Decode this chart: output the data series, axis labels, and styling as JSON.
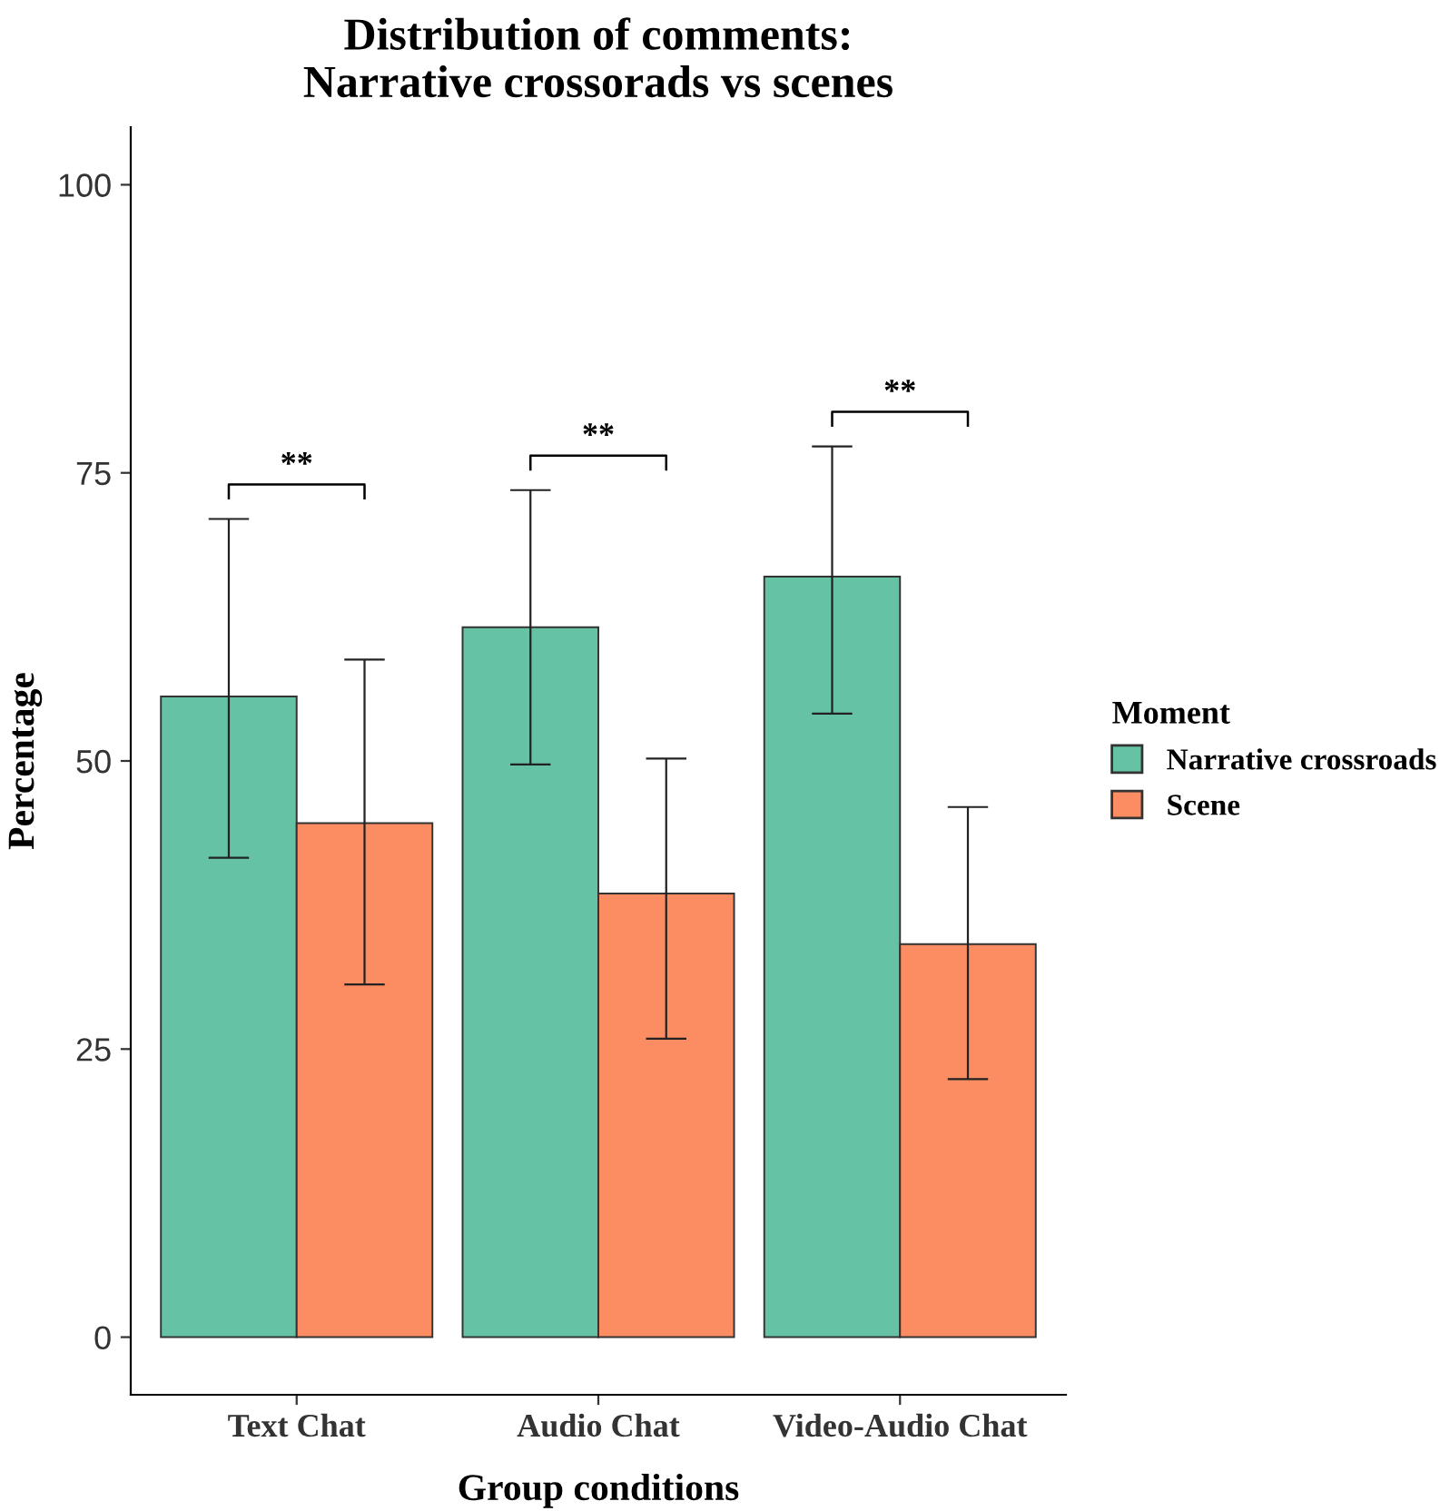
{
  "chart_data": {
    "type": "bar",
    "title": "Distribution of comments:\nNarrative crossorads vs scenes",
    "xlabel": "Group conditions",
    "ylabel": "Percentage",
    "legend_title": "Moment",
    "categories": [
      "Text Chat",
      "Audio Chat",
      "Video-Audio Chat"
    ],
    "series": [
      {
        "name": "Narrative crossroads",
        "color": "#66c2a5",
        "values": [
          55.6,
          61.6,
          66.0
        ],
        "errors": [
          [
            41.6,
            71.0
          ],
          [
            49.7,
            73.5
          ],
          [
            54.1,
            77.3
          ]
        ]
      },
      {
        "name": "Scene",
        "color": "#fc8d62",
        "values": [
          44.6,
          38.5,
          34.1
        ],
        "errors": [
          [
            30.6,
            58.8
          ],
          [
            25.9,
            50.2
          ],
          [
            22.4,
            46.0
          ]
        ]
      }
    ],
    "ylim": [
      -5,
      105
    ],
    "yticks": [
      0,
      25,
      50,
      75,
      100
    ],
    "grid": false,
    "legend": "right",
    "annotations": [
      "**",
      "**",
      "**"
    ]
  }
}
